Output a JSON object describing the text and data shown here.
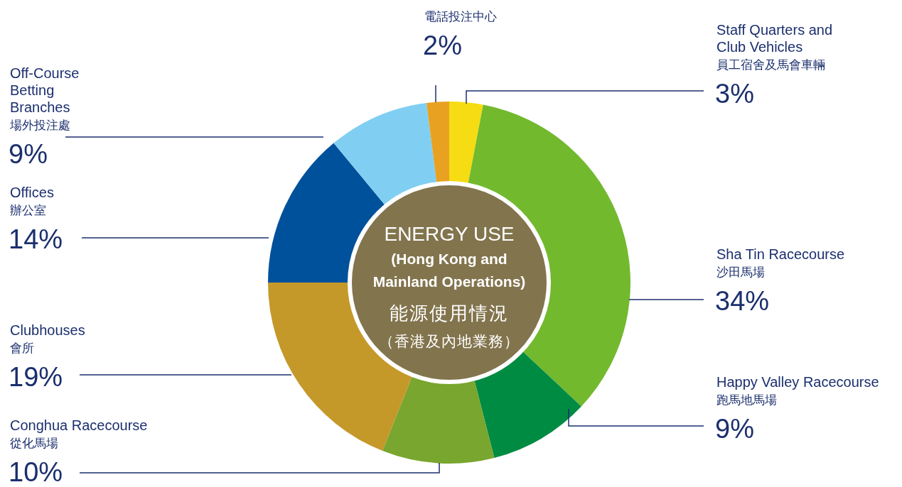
{
  "chart_data": {
    "type": "donut",
    "title": "ENERGY USE",
    "subtitle": "(Hong Kong and Mainland Operations)",
    "annotations": [
      "能源使用情況",
      "（香港及內地業務）"
    ],
    "categories": [
      "Staff Quarters and Club Vehicles 員工宿舍及馬會車輛",
      "Sha Tin Racecourse 沙田馬場",
      "Happy Valley Racecourse 跑馬地馬場",
      "Conghua Racecourse 從化馬場",
      "Clubhouses 會所",
      "Offices 辦公室",
      "Off-Course Betting Branches 場外投注處",
      "電話投注中心"
    ],
    "values": [
      3,
      34,
      9,
      10,
      19,
      14,
      9,
      2
    ],
    "colors": [
      "#f6dc12",
      "#72b92e",
      "#008b43",
      "#79a62f",
      "#c5982a",
      "#00519b",
      "#80cff2",
      "#e9a121"
    ],
    "value_labels": [
      "3%",
      "34%",
      "9%",
      "10%",
      "19%",
      "14%",
      "9%",
      "2%"
    ]
  }
}
